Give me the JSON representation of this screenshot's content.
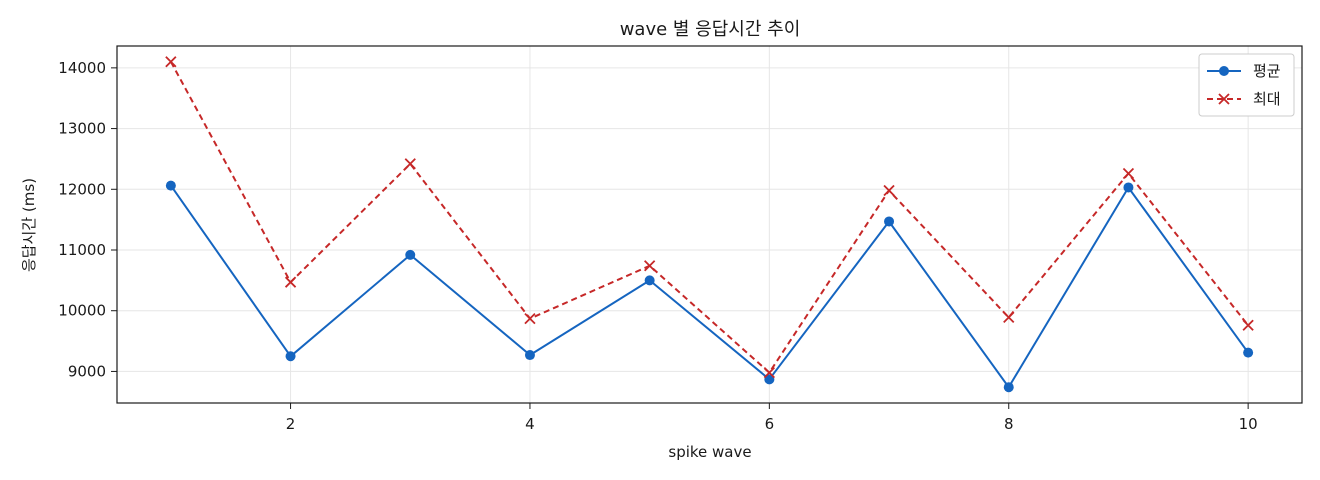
{
  "chart_data": {
    "type": "line",
    "title": "wave 별 응답시간 추이",
    "xlabel": "spike wave",
    "ylabel": "응답시간 (ms)",
    "x": [
      1,
      2,
      3,
      4,
      5,
      6,
      7,
      8,
      9,
      10
    ],
    "xlim": [
      0.55,
      10.45
    ],
    "ylim": [
      8480,
      14360
    ],
    "x_ticks": [
      2,
      4,
      6,
      8,
      10
    ],
    "y_ticks": [
      9000,
      10000,
      11000,
      12000,
      13000,
      14000
    ],
    "grid": true,
    "legend_position": "top-right",
    "series": [
      {
        "name": "평균",
        "color": "#1565c0",
        "line_style": "solid",
        "marker": "circle",
        "values": [
          12060,
          9250,
          10920,
          9270,
          10500,
          8870,
          11470,
          8740,
          12030,
          9310
        ]
      },
      {
        "name": "최대",
        "color": "#c62828",
        "line_style": "dashed",
        "marker": "x",
        "values": [
          14100,
          10470,
          12420,
          9870,
          10740,
          8980,
          11980,
          9890,
          12260,
          9760
        ]
      }
    ]
  }
}
